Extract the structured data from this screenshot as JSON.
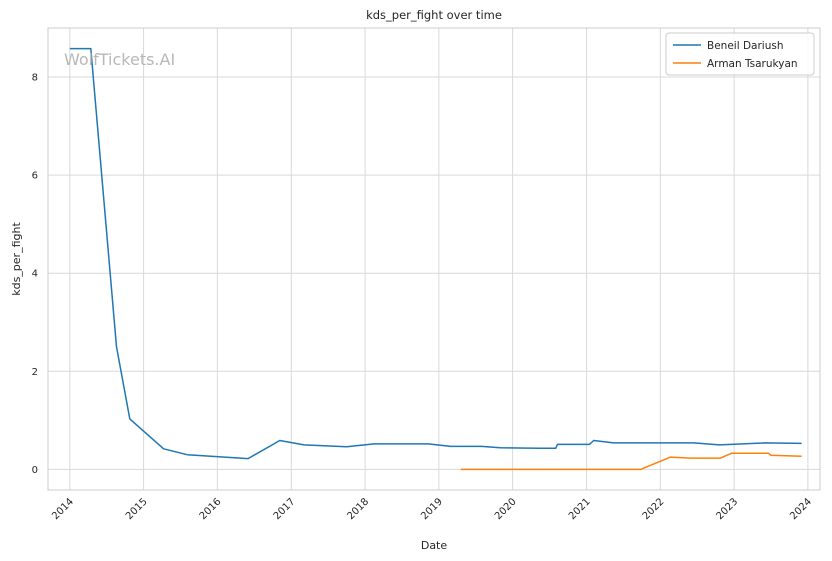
{
  "chart_data": {
    "type": "line",
    "title": "kds_per_fight over time",
    "xlabel": "Date",
    "ylabel": "kds_per_fight",
    "watermark": "WolfTickets.AI",
    "x_ticks": [
      "2014",
      "2015",
      "2016",
      "2017",
      "2018",
      "2019",
      "2020",
      "2021",
      "2022",
      "2023",
      "2024"
    ],
    "y_ticks": [
      0,
      2,
      4,
      6,
      8
    ],
    "xlim": [
      "2013-09-15",
      "2024-03-01"
    ],
    "ylim": [
      -0.42,
      9.0
    ],
    "grid": true,
    "legend_position": "top-right",
    "series": [
      {
        "name": "Beneil Dariush",
        "color": "#1f77b4",
        "points": [
          [
            "2014-01-01",
            8.58
          ],
          [
            "2014-04-15",
            8.58
          ],
          [
            "2014-08-20",
            2.5
          ],
          [
            "2014-10-25",
            1.03
          ],
          [
            "2015-04-10",
            0.42
          ],
          [
            "2015-08-05",
            0.3
          ],
          [
            "2016-06-01",
            0.22
          ],
          [
            "2016-11-05",
            0.59
          ],
          [
            "2017-03-05",
            0.5
          ],
          [
            "2017-10-01",
            0.46
          ],
          [
            "2018-02-15",
            0.52
          ],
          [
            "2018-11-10",
            0.52
          ],
          [
            "2019-03-01",
            0.47
          ],
          [
            "2019-08-01",
            0.47
          ],
          [
            "2019-11-01",
            0.44
          ],
          [
            "2020-05-15",
            0.43
          ],
          [
            "2020-08-01",
            0.43
          ],
          [
            "2020-08-10",
            0.51
          ],
          [
            "2021-01-15",
            0.51
          ],
          [
            "2021-02-05",
            0.59
          ],
          [
            "2021-05-15",
            0.54
          ],
          [
            "2022-06-15",
            0.54
          ],
          [
            "2022-10-20",
            0.5
          ],
          [
            "2023-06-01",
            0.54
          ],
          [
            "2023-12-01",
            0.53
          ]
        ]
      },
      {
        "name": "Arman Tsarukyan",
        "color": "#ff7f0e",
        "points": [
          [
            "2019-04-20",
            0.0
          ],
          [
            "2021-09-25",
            0.0
          ],
          [
            "2022-02-20",
            0.25
          ],
          [
            "2022-06-01",
            0.23
          ],
          [
            "2022-10-25",
            0.23
          ],
          [
            "2022-12-20",
            0.33
          ],
          [
            "2023-06-20",
            0.33
          ],
          [
            "2023-07-01",
            0.29
          ],
          [
            "2023-12-01",
            0.27
          ]
        ]
      }
    ]
  }
}
